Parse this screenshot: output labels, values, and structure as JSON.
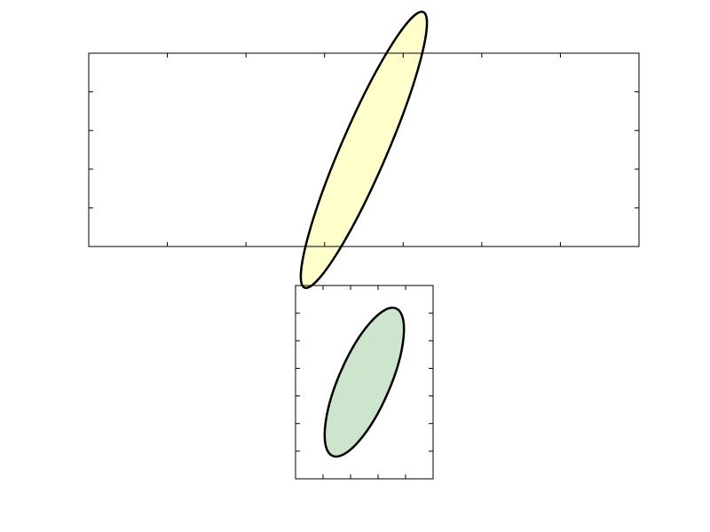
{
  "chart_data": [
    {
      "type": "ellipse",
      "title": "",
      "xlabel": "",
      "ylabel": "",
      "xlim": [
        0,
        5
      ],
      "ylim": [
        0,
        7
      ],
      "grid": false,
      "aspect": "equal",
      "ticks_x": [
        1,
        2,
        3,
        4
      ],
      "ticks_y": [
        1,
        2,
        3,
        4,
        5,
        6
      ],
      "tick_labels_visible": false,
      "ellipse": {
        "center": [
          2.5,
          3.5
        ],
        "width": 3.82,
        "height": 1.19,
        "angle_deg": 23.3,
        "fill_color": "#ffffcc",
        "edge_color": "#000000"
      }
    },
    {
      "type": "ellipse",
      "title": "",
      "xlabel": "",
      "ylabel": "",
      "xlim": [
        0,
        5
      ],
      "ylim": [
        0,
        7
      ],
      "grid": false,
      "aspect": "equal",
      "ticks_x": [
        1,
        2,
        3,
        4
      ],
      "ticks_y": [
        1,
        2,
        3,
        4,
        5,
        6
      ],
      "tick_labels_visible": false,
      "ellipse": {
        "center": [
          2.5,
          3.5
        ],
        "width": 5.84,
        "height": 1.87,
        "angle_deg": 66.7,
        "fill_color": "#cce5cc",
        "edge_color": "#000000"
      }
    }
  ]
}
